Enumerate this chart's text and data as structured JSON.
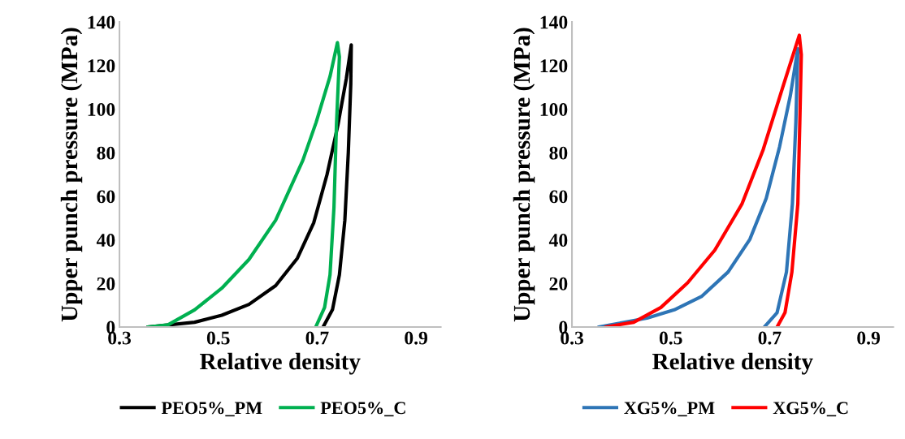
{
  "chart_data": [
    {
      "type": "line",
      "xlabel": "Relative density",
      "ylabel": "Upper punch pressure (MPa)",
      "xlim": [
        0.3,
        0.95
      ],
      "xticks": [
        0.3,
        0.5,
        0.7,
        0.9
      ],
      "ylim": [
        0,
        140
      ],
      "yticks": [
        0,
        20,
        40,
        60,
        80,
        100,
        120,
        140
      ],
      "grid": false,
      "legend": "bottom",
      "series": [
        {
          "name": "PEO5%_PM",
          "color": "#000000",
          "x": [
            0.357,
            0.452,
            0.507,
            0.562,
            0.616,
            0.66,
            0.693,
            0.72,
            0.742,
            0.759,
            0.769,
            0.768,
            0.763,
            0.756,
            0.745,
            0.731,
            0.712
          ],
          "values": [
            0,
            2.2,
            5.4,
            10.4,
            19,
            31.6,
            47.8,
            70,
            92.7,
            114,
            129.5,
            111.5,
            80,
            49,
            24,
            8,
            0
          ]
        },
        {
          "name": "PEO5%_C",
          "color": "#00b050",
          "x": [
            0.357,
            0.398,
            0.452,
            0.507,
            0.562,
            0.616,
            0.671,
            0.698,
            0.726,
            0.741,
            0.745,
            0.739,
            0.734,
            0.726,
            0.715,
            0.697
          ],
          "values": [
            0,
            1,
            7.9,
            17.8,
            31,
            49,
            76.5,
            94,
            115,
            130.5,
            124,
            92.7,
            55,
            24,
            9,
            0
          ]
        }
      ]
    },
    {
      "type": "line",
      "xlabel": "Relative density",
      "ylabel": "Upper punch pressure (MPa)",
      "xlim": [
        0.3,
        0.95
      ],
      "xticks": [
        0.3,
        0.5,
        0.7,
        0.9
      ],
      "ylim": [
        0,
        140
      ],
      "yticks": [
        0,
        20,
        40,
        60,
        80,
        100,
        120,
        140
      ],
      "grid": false,
      "legend": "bottom",
      "series": [
        {
          "name": "XG5%_PM",
          "color": "#2e75b6",
          "x": [
            0.354,
            0.452,
            0.507,
            0.562,
            0.616,
            0.66,
            0.693,
            0.72,
            0.742,
            0.757,
            0.753,
            0.746,
            0.734,
            0.715,
            0.689
          ],
          "values": [
            0,
            4.1,
            7.9,
            14,
            25.3,
            40.3,
            59,
            82.7,
            106.4,
            127.7,
            94,
            56.5,
            25.3,
            6.6,
            0
          ]
        },
        {
          "name": "XG5%_C",
          "color": "#ff0000",
          "x": [
            0.368,
            0.425,
            0.48,
            0.534,
            0.589,
            0.644,
            0.687,
            0.725,
            0.76,
            0.764,
            0.761,
            0.757,
            0.745,
            0.731,
            0.715
          ],
          "values": [
            0,
            2.2,
            9,
            20.3,
            35.3,
            56.5,
            81.5,
            109,
            133.9,
            125,
            94,
            56.5,
            25.3,
            6.6,
            0
          ]
        }
      ]
    }
  ]
}
